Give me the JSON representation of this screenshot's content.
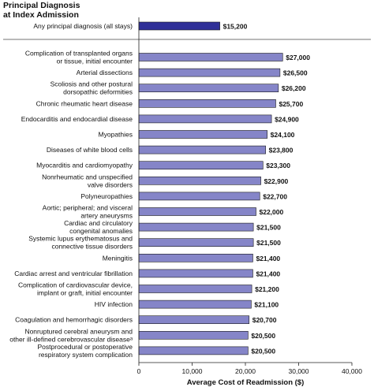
{
  "header": {
    "line1": "Principal Diagnosis",
    "line2": "at Index Admission"
  },
  "chart_data": {
    "type": "bar",
    "orientation": "horizontal",
    "xlabel": "Average Cost of Readmission ($)",
    "xlim": [
      0,
      40000
    ],
    "xticks": [
      "0",
      "10,000",
      "20,000",
      "30,000",
      "40,000"
    ],
    "grid": false,
    "bar_color": "#8585c8",
    "highlight_color": "#303098",
    "summary": {
      "label": "Any principal diagnosis (all stays)",
      "value": 15200,
      "value_label": "$15,200"
    },
    "categories": [
      [
        "Complication of transplanted organs",
        "or tissue, initial encounter"
      ],
      [
        "Arterial dissections"
      ],
      [
        "Scoliosis and other postural",
        "dorsopathic deformities"
      ],
      [
        "Chronic rheumatic heart disease"
      ],
      [
        "Endocarditis and endocardial disease"
      ],
      [
        "Myopathies"
      ],
      [
        "Diseases of white blood cells"
      ],
      [
        "Myocarditis and cardiomyopathy"
      ],
      [
        "Nonrheumatic and unspecified",
        "valve disorders"
      ],
      [
        "Polyneuropathies"
      ],
      [
        "Aortic; peripheral; and visceral",
        "artery aneurysms"
      ],
      [
        "Cardiac and circulatory",
        "congenital anomalies"
      ],
      [
        "Systemic lupus erythematosus and",
        "connective tissue disorders"
      ],
      [
        "Meningitis"
      ],
      [
        "Cardiac arrest and ventricular fibrillation"
      ],
      [
        "Complication of cardiovascular device,",
        "implant or graft, initial encounter"
      ],
      [
        "HIV infection"
      ],
      [
        "Coagulation and hemorrhagic disorders"
      ],
      [
        "Nonruptured cerebral aneurysm and",
        "other ill-defined cerebrovascular diseaseᵃ"
      ],
      [
        "Postprocedural or postoperative",
        "respiratory system complication"
      ]
    ],
    "values": [
      27000,
      26500,
      26200,
      25700,
      24900,
      24100,
      23800,
      23300,
      22900,
      22700,
      22000,
      21500,
      21500,
      21400,
      21400,
      21200,
      21100,
      20700,
      20500,
      20500
    ],
    "value_labels": [
      "$27,000",
      "$26,500",
      "$26,200",
      "$25,700",
      "$24,900",
      "$24,100",
      "$23,800",
      "$23,300",
      "$22,900",
      "$22,700",
      "$22,000",
      "$21,500",
      "$21,500",
      "$21,400",
      "$21,400",
      "$21,200",
      "$21,100",
      "$20,700",
      "$20,500",
      "$20,500"
    ]
  }
}
